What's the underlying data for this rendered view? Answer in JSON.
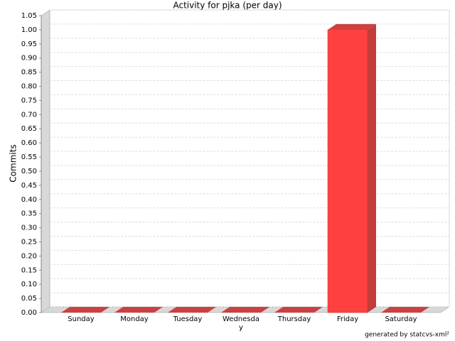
{
  "chart_data": {
    "type": "bar3d",
    "title": "Activity for pjka (per day)",
    "y_label": "Commits",
    "footer": "generated by statcvs-xml²",
    "categories": [
      "Sunday",
      "Monday",
      "Tuesday",
      "Wednesday",
      "Thursday",
      "Friday",
      "Saturday"
    ],
    "values": [
      0,
      0,
      0,
      0,
      0,
      1,
      0
    ],
    "color": "#ff4040",
    "ylim": [
      0,
      1.05
    ],
    "yticks": [
      {
        "value": 0,
        "label": "0.00"
      },
      {
        "value": 0.05,
        "label": "0.05"
      },
      {
        "value": 0.1,
        "label": "0.10"
      },
      {
        "value": 0.15,
        "label": "0.15"
      },
      {
        "value": 0.2,
        "label": "0.20"
      },
      {
        "value": 0.25,
        "label": "0.25"
      },
      {
        "value": 0.3,
        "label": "0.30"
      },
      {
        "value": 0.35,
        "label": "0.35"
      },
      {
        "value": 0.4,
        "label": "0.40"
      },
      {
        "value": 0.45,
        "label": "0.45"
      },
      {
        "value": 0.5,
        "label": "0.50"
      },
      {
        "value": 0.55,
        "label": "0.55"
      },
      {
        "value": 0.6,
        "label": "0.60"
      },
      {
        "value": 0.65,
        "label": "0.65"
      },
      {
        "value": 0.7,
        "label": "0.70"
      },
      {
        "value": 0.75,
        "label": "0.75"
      },
      {
        "value": 0.8,
        "label": "0.80"
      },
      {
        "value": 0.85,
        "label": "0.85"
      },
      {
        "value": 0.9,
        "label": "0.90"
      },
      {
        "value": 0.95,
        "label": "0.95"
      },
      {
        "value": 1,
        "label": "1.00"
      },
      {
        "value": 1.05,
        "label": "1.05"
      }
    ],
    "grid": true
  }
}
